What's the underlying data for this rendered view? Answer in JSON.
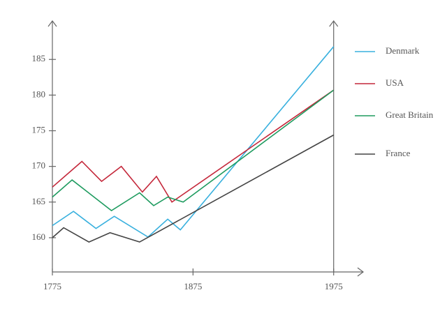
{
  "chart_data": {
    "type": "line",
    "xlim": [
      1775,
      1996
    ],
    "ylim": [
      155.2,
      190.4
    ],
    "xticks": [
      1775,
      1875,
      1975
    ],
    "yticks": [
      160,
      165,
      170,
      175,
      180,
      185
    ],
    "series": [
      {
        "name": "Denmark",
        "color": "#38b0de",
        "x": [
          1775,
          1790,
          1806,
          1819,
          1843,
          1857,
          1866,
          1975
        ],
        "values": [
          161.7,
          163.7,
          161.3,
          163,
          160.1,
          162.6,
          161.1,
          186.8
        ]
      },
      {
        "name": "USA",
        "color": "#c4273a",
        "x": [
          1775,
          1796,
          1810,
          1824,
          1839,
          1849,
          1860,
          1975
        ],
        "values": [
          167.1,
          170.7,
          167.9,
          170,
          166.4,
          168.6,
          165,
          180.7
        ]
      },
      {
        "name": "Great Britain",
        "color": "#1e9b5f",
        "x": [
          1775,
          1789,
          1817,
          1837,
          1847,
          1857,
          1868,
          1975
        ],
        "values": [
          165.7,
          168.1,
          163.8,
          166.3,
          164.5,
          165.7,
          165,
          180.7
        ]
      },
      {
        "name": "France",
        "color": "#444444",
        "x": [
          1775,
          1783,
          1801,
          1816,
          1837,
          1975
        ],
        "values": [
          160,
          161.4,
          159.4,
          160.7,
          159.4,
          174.4
        ]
      }
    ]
  }
}
